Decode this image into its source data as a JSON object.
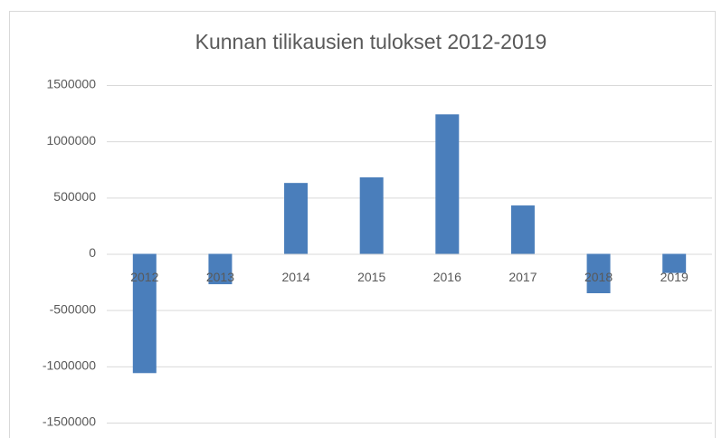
{
  "chart_data": {
    "type": "bar",
    "title": "Kunnan tilikausien tulokset 2012-2019",
    "categories": [
      "2012",
      "2013",
      "2014",
      "2015",
      "2016",
      "2017",
      "2018",
      "2019"
    ],
    "values": [
      -1060000,
      -270000,
      630000,
      680000,
      1240000,
      430000,
      -350000,
      -170000
    ],
    "color": "#4a7ebb",
    "ylim": [
      -1500000,
      1500000
    ],
    "yticks": [
      -1500000,
      -1000000,
      -500000,
      0,
      500000,
      1000000,
      1500000
    ],
    "grid": true
  }
}
